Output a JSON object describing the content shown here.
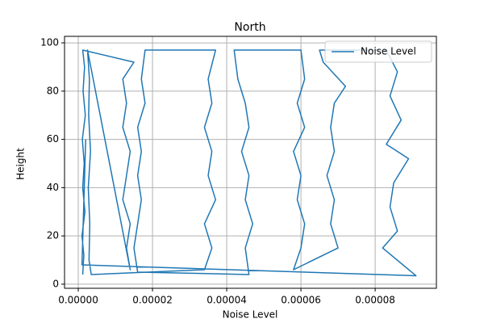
{
  "chart_data": {
    "type": "line",
    "title": "North",
    "x_label": "Noise Level",
    "y_label": "Height",
    "x": [
      1.2e-06,
      1.5e-06,
      1e-06,
      1.8e-06,
      1.2e-06,
      1.6e-06,
      1.1e-06,
      1.9e-06,
      1.3e-06,
      1.7e-06,
      1.2e-06,
      1.5e-05,
      1.2e-05,
      1.3e-05,
      1.2e-05,
      1.4e-05,
      1.3e-05,
      1.2e-05,
      1.4e-05,
      1.3e-05,
      1.4e-05,
      2.5e-06,
      3e-06,
      2.8e-06,
      3.3e-06,
      2.7e-06,
      3.1e-06,
      2.9e-06,
      3.5e-06,
      3.4e-05,
      3.6e-05,
      3.4e-05,
      3.7e-05,
      3.5e-05,
      3.6e-05,
      3.4e-05,
      3.6e-05,
      3.5e-05,
      3.7e-05,
      1.8e-05,
      1.7e-05,
      1.8e-05,
      1.6e-05,
      1.7e-05,
      1.6e-05,
      1.7e-05,
      1.6e-05,
      1.5e-05,
      1.6e-05,
      4.6e-05,
      4.5e-05,
      4.7e-05,
      4.5e-05,
      4.6e-05,
      4.4e-05,
      4.6e-05,
      4.5e-05,
      4.3e-05,
      4.2e-05,
      6e-05,
      6.1e-05,
      5.9e-05,
      6.1e-05,
      5.8e-05,
      6e-05,
      5.9e-05,
      6.1e-05,
      6e-05,
      5.8e-05,
      7e-05,
      6.8e-05,
      6.9e-05,
      6.7e-05,
      6.9e-05,
      6.8e-05,
      6.9e-05,
      7.2e-05,
      6.6e-05,
      6.5e-05,
      8.3e-05,
      8.6e-05,
      8.4e-05,
      8.7e-05,
      8.3e-05,
      8.9e-05,
      8.5e-05,
      8.4e-05,
      8.6e-05,
      8.2e-05,
      9.1e-05,
      1e-06,
      2e-06
    ],
    "series": [
      {
        "name": "Noise Level",
        "color": "#1f77b4",
        "values": [
          4,
          12,
          20,
          30,
          40,
          50,
          60,
          70,
          80,
          90,
          97,
          92,
          85,
          75,
          65,
          55,
          45,
          35,
          25,
          15,
          6,
          97,
          85,
          70,
          55,
          40,
          25,
          10,
          4,
          6,
          15,
          25,
          35,
          45,
          55,
          65,
          75,
          85,
          97,
          97,
          85,
          75,
          65,
          55,
          45,
          35,
          25,
          15,
          5,
          4,
          15,
          25,
          35,
          45,
          55,
          65,
          75,
          85,
          97,
          97,
          85,
          75,
          65,
          55,
          45,
          35,
          25,
          15,
          6,
          15,
          25,
          35,
          45,
          55,
          65,
          75,
          82,
          92,
          97,
          97,
          88,
          78,
          68,
          58,
          52,
          42,
          32,
          22,
          15,
          3.5,
          8,
          60
        ]
      }
    ],
    "xlim": [
      -3.7e-06,
      9.65e-05
    ],
    "ylim": [
      -1.7,
      102.7
    ],
    "xticks": [
      {
        "value": 0,
        "label": "0.00000"
      },
      {
        "value": 2e-05,
        "label": "0.00002"
      },
      {
        "value": 4e-05,
        "label": "0.00004"
      },
      {
        "value": 6e-05,
        "label": "0.00006"
      },
      {
        "value": 8e-05,
        "label": "0.00008"
      }
    ],
    "yticks": [
      0,
      20,
      40,
      60,
      80,
      100
    ],
    "grid": true,
    "legend": "upper right"
  }
}
